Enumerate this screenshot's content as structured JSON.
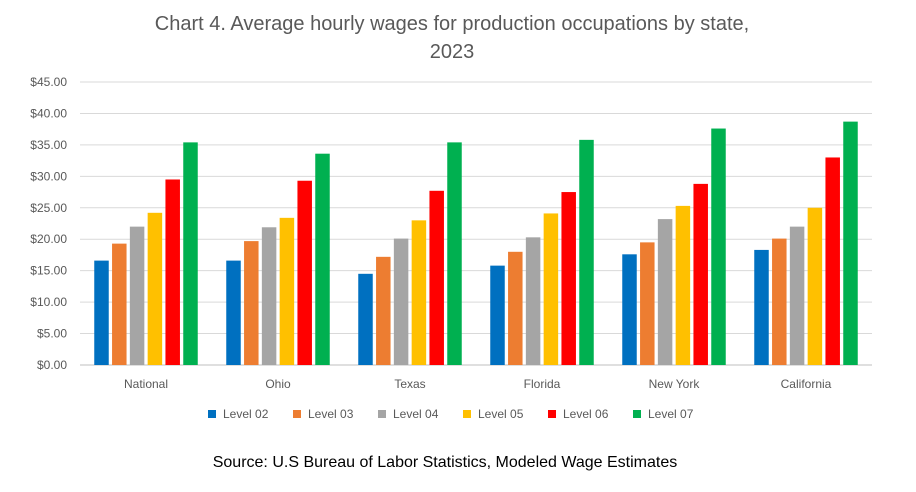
{
  "chart_data": {
    "type": "bar",
    "title": "Chart 4. Average hourly wages for production occupations by state,\n2023",
    "source": "Source: U.S Bureau of Labor Statistics, Modeled Wage Estimates",
    "categories": [
      "National",
      "Ohio",
      "Texas",
      "Florida",
      "New York",
      "California"
    ],
    "y_ticks": [
      "$0.00",
      "$5.00",
      "$10.00",
      "$15.00",
      "$20.00",
      "$25.00",
      "$30.00",
      "$35.00",
      "$40.00",
      "$45.00"
    ],
    "ylim": [
      0,
      45
    ],
    "grid": true,
    "legend_position": "bottom",
    "series": [
      {
        "name": "Level 02",
        "color": "#0070C0",
        "values": [
          16.6,
          16.6,
          14.5,
          15.8,
          17.6,
          18.3
        ]
      },
      {
        "name": "Level 03",
        "color": "#ED7D31",
        "values": [
          19.3,
          19.7,
          17.2,
          18.0,
          19.5,
          20.1
        ]
      },
      {
        "name": "Level 04",
        "color": "#A5A5A5",
        "values": [
          22.0,
          21.9,
          20.1,
          20.3,
          23.2,
          22.0
        ]
      },
      {
        "name": "Level 05",
        "color": "#FFC000",
        "values": [
          24.2,
          23.4,
          23.0,
          24.1,
          25.3,
          25.0
        ]
      },
      {
        "name": "Level 06",
        "color": "#FF0000",
        "values": [
          29.5,
          29.3,
          27.7,
          27.5,
          28.8,
          33.0
        ]
      },
      {
        "name": "Level 07",
        "color": "#00B050",
        "values": [
          35.4,
          33.6,
          35.4,
          35.8,
          37.6,
          38.7
        ]
      }
    ]
  }
}
